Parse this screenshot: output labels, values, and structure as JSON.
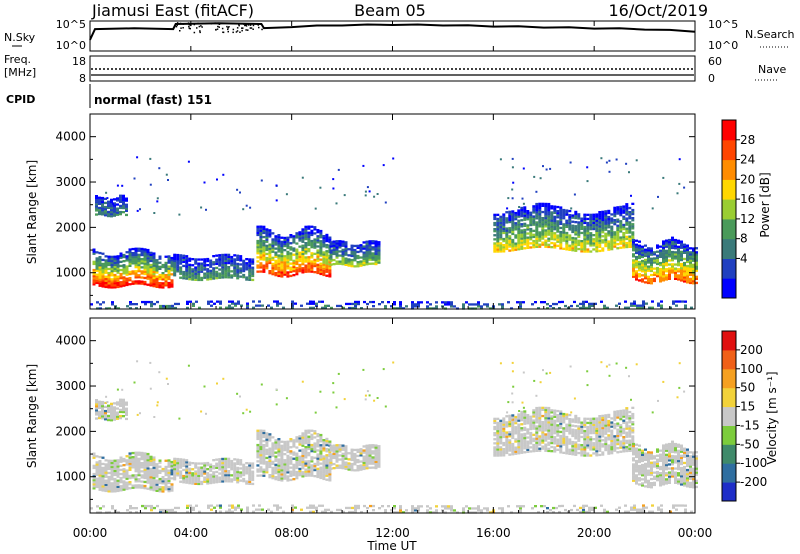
{
  "header": {
    "station": "Jiamusi East (fitACF)",
    "beam": "Beam 05",
    "date": "16/Oct/2019"
  },
  "noise_panel": {
    "left_label": "N.Sky",
    "right_label": "N.Search",
    "left_ticks": [
      "10^5",
      "10^0"
    ],
    "right_ticks": [
      "10^5",
      "10^0"
    ]
  },
  "freq_panel": {
    "left_label_line1": "Freq.",
    "left_label_line2": "[MHz]",
    "left_ticks": [
      "18",
      "8"
    ],
    "right_label": "Nave",
    "right_ticks": [
      "60",
      "0"
    ]
  },
  "cpid_panel": {
    "label": "CPID",
    "mode": "normal (fast) 151"
  },
  "power_panel": {
    "ylabel": "Slant Range [km]",
    "yticks": [
      "4000",
      "3000",
      "2000",
      "1000"
    ],
    "colorbar_label": "Power [dB]",
    "colorbar_ticks": [
      "28",
      "24",
      "20",
      "16",
      "12",
      "8",
      "4"
    ],
    "colors": [
      "#0000ff",
      "#2040c0",
      "#3a7a7a",
      "#4a9a5a",
      "#9acd32",
      "#ffd700",
      "#ff8c00",
      "#ff4500",
      "#ff0000"
    ]
  },
  "velocity_panel": {
    "ylabel": "Slant Range [km]",
    "yticks": [
      "4000",
      "3000",
      "2000",
      "1000"
    ],
    "colorbar_label": "Velocity [m s⁻¹]",
    "colorbar_ticks": [
      "200",
      "100",
      "50",
      "15",
      "-15",
      "-50",
      "-100",
      "-200"
    ],
    "colors": [
      "#1e2ec8",
      "#2f6ea0",
      "#3f8a6a",
      "#7ccc3c",
      "#c8c8c8",
      "#f2d23a",
      "#f5a020",
      "#f06018",
      "#e01010"
    ]
  },
  "x_axis": {
    "label": "Time UT",
    "ticks": [
      "00:00",
      "04:00",
      "08:00",
      "12:00",
      "16:00",
      "20:00",
      "00:00"
    ]
  },
  "chart_data": {
    "type": "heatmap",
    "x_range_hours": [
      0,
      24
    ],
    "y_range_km": [
      200,
      4500
    ],
    "noise_sky": {
      "hours": [
        0,
        0.2,
        3.3,
        3.4,
        6.8,
        6.9,
        8,
        10,
        12,
        14,
        16,
        18,
        20,
        22,
        24
      ],
      "log10": [
        2.2,
        4.3,
        4.3,
        5.3,
        5.3,
        4.5,
        4.7,
        5.0,
        5.1,
        5.0,
        4.8,
        4.6,
        4.4,
        4.2,
        3.8
      ]
    },
    "power_echoes": [
      {
        "t": [
          0.1,
          3.2
        ],
        "r": [
          700,
          1450
        ],
        "peak_db": 28
      },
      {
        "t": [
          3.3,
          6.5
        ],
        "r": [
          850,
          1350
        ],
        "peak_db": 10
      },
      {
        "t": [
          6.6,
          9.5
        ],
        "r": [
          950,
          1900
        ],
        "peak_db": 26
      },
      {
        "t": [
          9.5,
          11.5
        ],
        "r": [
          1150,
          1650
        ],
        "peak_db": 14
      },
      {
        "t": [
          16.0,
          21.5
        ],
        "r": [
          1500,
          2400
        ],
        "peak_db": 18
      },
      {
        "t": [
          21.5,
          24.0
        ],
        "r": [
          800,
          1650
        ],
        "peak_db": 24
      },
      {
        "t": [
          0,
          24
        ],
        "r": [
          200,
          350
        ],
        "peak_db": 8
      },
      {
        "t": [
          0.2,
          1.5
        ],
        "r": [
          2250,
          2650
        ],
        "peak_db": 8
      }
    ]
  }
}
